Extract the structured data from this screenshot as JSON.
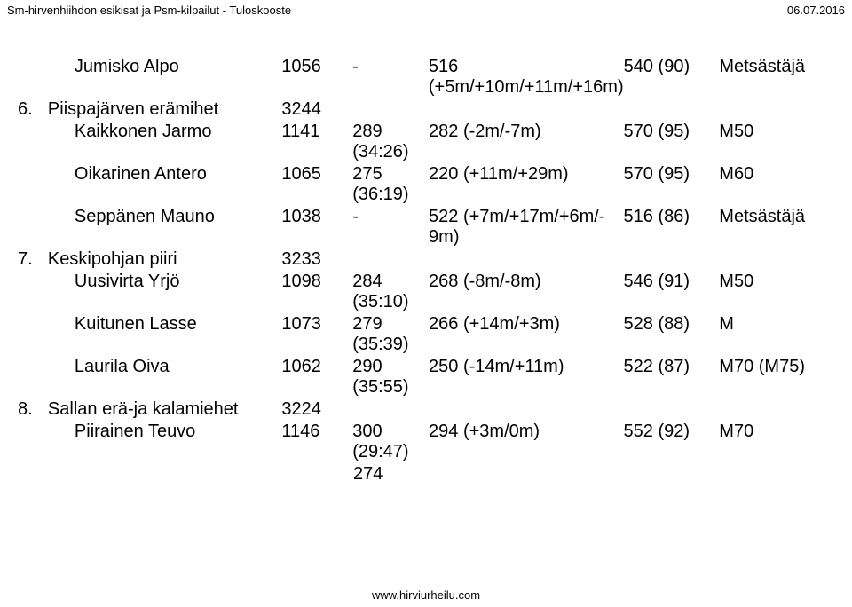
{
  "header": {
    "left": "Sm-hirvenhiihdon esikisat ja Psm-kilpailut - Tuloskooste",
    "right": "06.07.2016"
  },
  "footer": "www.hirviurheilu.com",
  "orphan": "274",
  "rows": [
    {
      "num": "",
      "name": "Jumisko Alpo",
      "indent": true,
      "pts": "1056",
      "time": "-",
      "diff_top": "516",
      "diff_bot": "(+5m/+10m/+11m/+16m)",
      "score": "540 (90)",
      "cls": "Metsästäjä"
    },
    {
      "num": "6.",
      "name": "Piispajärven erämihet",
      "indent": false,
      "pts": "3244",
      "time": "",
      "diff_top": "",
      "diff_bot": "",
      "score": "",
      "cls": ""
    },
    {
      "num": "",
      "name": "Kaikkonen Jarmo",
      "indent": true,
      "pts": "1141",
      "time_top": "289",
      "time_bot": "(34:26)",
      "diff_top": "282 (-2m/-7m)",
      "diff_bot": "",
      "score": "570 (95)",
      "cls": "M50"
    },
    {
      "num": "",
      "name": "Oikarinen Antero",
      "indent": true,
      "pts": "1065",
      "time_top": "275",
      "time_bot": "(36:19)",
      "diff_top": "220 (+11m/+29m)",
      "diff_bot": "",
      "score": "570 (95)",
      "cls": "M60"
    },
    {
      "num": "",
      "name": "Seppänen Mauno",
      "indent": true,
      "pts": "1038",
      "time": "-",
      "diff_top": "522 (+7m/+17m/+6m/-",
      "diff_bot": "9m)",
      "score": "516 (86)",
      "cls": "Metsästäjä"
    },
    {
      "num": "7.",
      "name": "Keskipohjan piiri",
      "indent": false,
      "pts": "3233",
      "time": "",
      "diff_top": "",
      "diff_bot": "",
      "score": "",
      "cls": ""
    },
    {
      "num": "",
      "name": "Uusivirta Yrjö",
      "indent": true,
      "pts": "1098",
      "time_top": "284",
      "time_bot": "(35:10)",
      "diff_top": "268 (-8m/-8m)",
      "diff_bot": "",
      "score": "546 (91)",
      "cls": "M50"
    },
    {
      "num": "",
      "name": "Kuitunen Lasse",
      "indent": true,
      "pts": "1073",
      "time_top": "279",
      "time_bot": "(35:39)",
      "diff_top": "266 (+14m/+3m)",
      "diff_bot": "",
      "score": "528 (88)",
      "cls": "M"
    },
    {
      "num": "",
      "name": "Laurila Oiva",
      "indent": true,
      "pts": "1062",
      "time_top": "290",
      "time_bot": "(35:55)",
      "diff_top": "250 (-14m/+11m)",
      "diff_bot": "",
      "score": "522 (87)",
      "cls": "M70 (M75)"
    },
    {
      "num": "8.",
      "name": "Sallan erä-ja kalamiehet",
      "indent": false,
      "pts": "3224",
      "time": "",
      "diff_top": "",
      "diff_bot": "",
      "score": "",
      "cls": ""
    },
    {
      "num": "",
      "name": "Piirainen Teuvo",
      "indent": true,
      "pts": "1146",
      "time_top": "300",
      "time_bot": "(29:47)",
      "diff_top": "294 (+3m/0m)",
      "diff_bot": "",
      "score": "552 (92)",
      "cls": "M70"
    }
  ]
}
